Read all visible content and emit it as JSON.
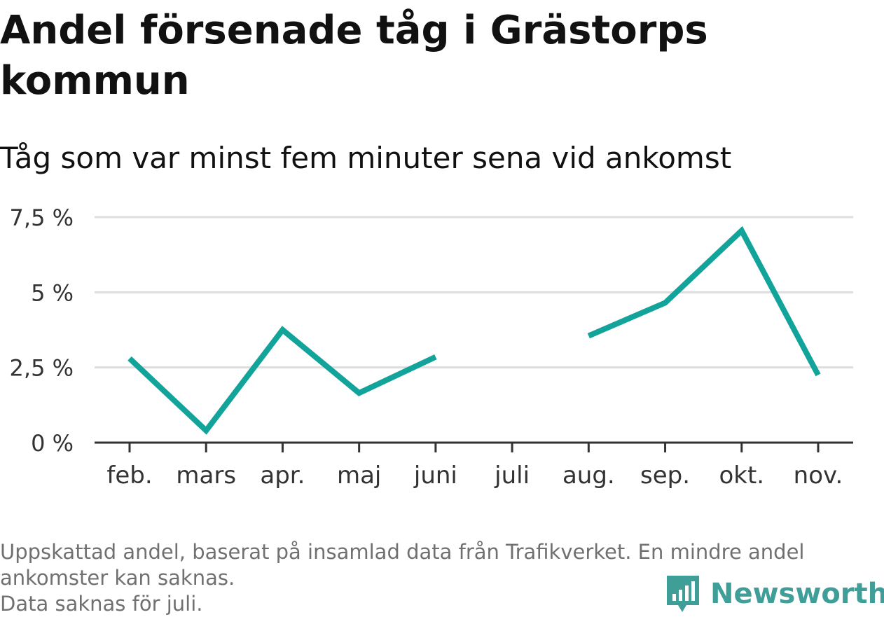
{
  "title": "Andel försenade tåg i Grästorps kommun",
  "subtitle": "Tåg som var minst fem minuter sena vid ankomst",
  "footnote": {
    "line1": "Uppskattad andel, baserat på insamlad data från Trafikverket. En mindre andel",
    "line2": "ankomster kan saknas.",
    "line3": "Data saknas för juli."
  },
  "brand": {
    "name": "Newsworthy",
    "logo_icon": "newsworthy-logo-icon",
    "color": "#3f9e98"
  },
  "colors": {
    "series": "#12a39b",
    "grid": "#dddddd",
    "axis": "#333333",
    "tick_text": "#333333"
  },
  "chart_data": {
    "type": "line",
    "categories": [
      "feb.",
      "mars",
      "apr.",
      "maj",
      "juni",
      "juli",
      "aug.",
      "sep.",
      "okt.",
      "nov."
    ],
    "series": [
      {
        "values": [
          2.8,
          0.4,
          3.75,
          1.65,
          2.85,
          null,
          3.55,
          4.65,
          7.05,
          2.25
        ]
      }
    ],
    "yticks": [
      0,
      2.5,
      5,
      7.5
    ],
    "ytick_labels": [
      "0 %",
      "2,5 %",
      "5 %",
      "7,5 %"
    ],
    "ylim": [
      0,
      7.5
    ],
    "xlabel": "",
    "ylabel": "",
    "grid": true,
    "legend": "none"
  }
}
